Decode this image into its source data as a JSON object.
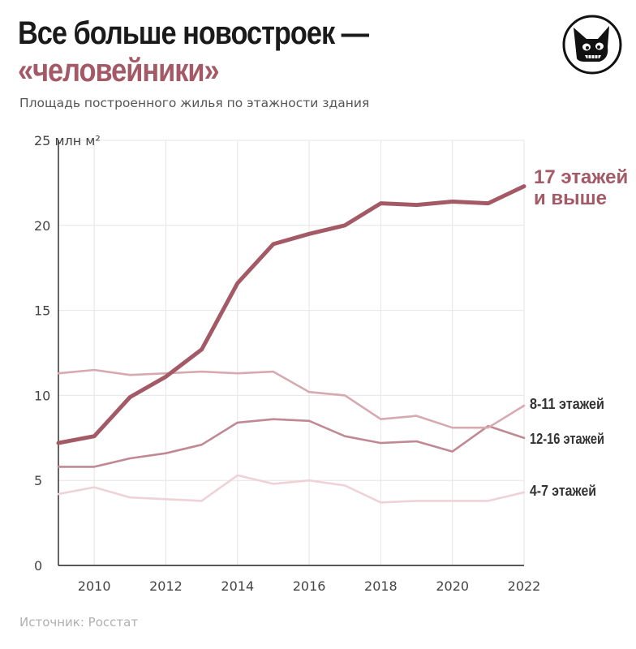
{
  "header": {
    "title_line1": "Все больше новостроек —",
    "title_line2": "«человейники»",
    "subtitle": "Площадь построенного жилья по этажности здания"
  },
  "logo": {
    "icon": "dog-head-icon"
  },
  "source": "Источник: Росстат",
  "colors": {
    "s17": "#a35a66",
    "s8_11": "#d7a9b1",
    "s12_16": "#c08994",
    "s4_7": "#efd2d7",
    "title_accent": "#a35a66",
    "grid": "#e6e6e6"
  },
  "chart_data": {
    "type": "line",
    "title": "Все больше новостроек — «человейники»",
    "subtitle": "Площадь построенного жилья по этажности здания",
    "unit_label": "25 млн м²",
    "x": [
      2009,
      2010,
      2011,
      2012,
      2013,
      2014,
      2015,
      2016,
      2017,
      2018,
      2019,
      2020,
      2021,
      2022
    ],
    "x_ticks": [
      2010,
      2012,
      2014,
      2016,
      2018,
      2020,
      2022
    ],
    "y_ticks": [
      0,
      5,
      10,
      15,
      20,
      25
    ],
    "ylim": [
      0,
      25
    ],
    "xlim": [
      2009,
      2022
    ],
    "grid": true,
    "series": [
      {
        "name": "17 этажей и выше",
        "label_lines": [
          "17 этажей",
          "и выше"
        ],
        "color_key": "s17",
        "values": [
          7.2,
          7.6,
          9.9,
          11.1,
          12.7,
          16.6,
          18.9,
          19.5,
          20.0,
          21.3,
          21.2,
          21.4,
          21.3,
          22.3
        ]
      },
      {
        "name": "8-11 этажей",
        "label_lines": [
          "8-11 этажей"
        ],
        "color_key": "s8_11",
        "values": [
          11.3,
          11.5,
          11.2,
          11.3,
          11.4,
          11.3,
          11.4,
          10.2,
          10.0,
          8.6,
          8.8,
          8.1,
          8.1,
          9.4
        ]
      },
      {
        "name": "12-16 этажей",
        "label_lines": [
          "12-16 этажей"
        ],
        "color_key": "s12_16",
        "values": [
          5.8,
          5.8,
          6.3,
          6.6,
          7.1,
          8.4,
          8.6,
          8.5,
          7.6,
          7.2,
          7.3,
          6.7,
          8.2,
          7.5
        ]
      },
      {
        "name": "4-7 этажей",
        "label_lines": [
          "4-7 этажей"
        ],
        "color_key": "s4_7",
        "values": [
          4.2,
          4.6,
          4.0,
          3.9,
          3.8,
          5.3,
          4.8,
          5.0,
          4.7,
          3.7,
          3.8,
          3.8,
          3.8,
          4.3
        ]
      }
    ]
  }
}
